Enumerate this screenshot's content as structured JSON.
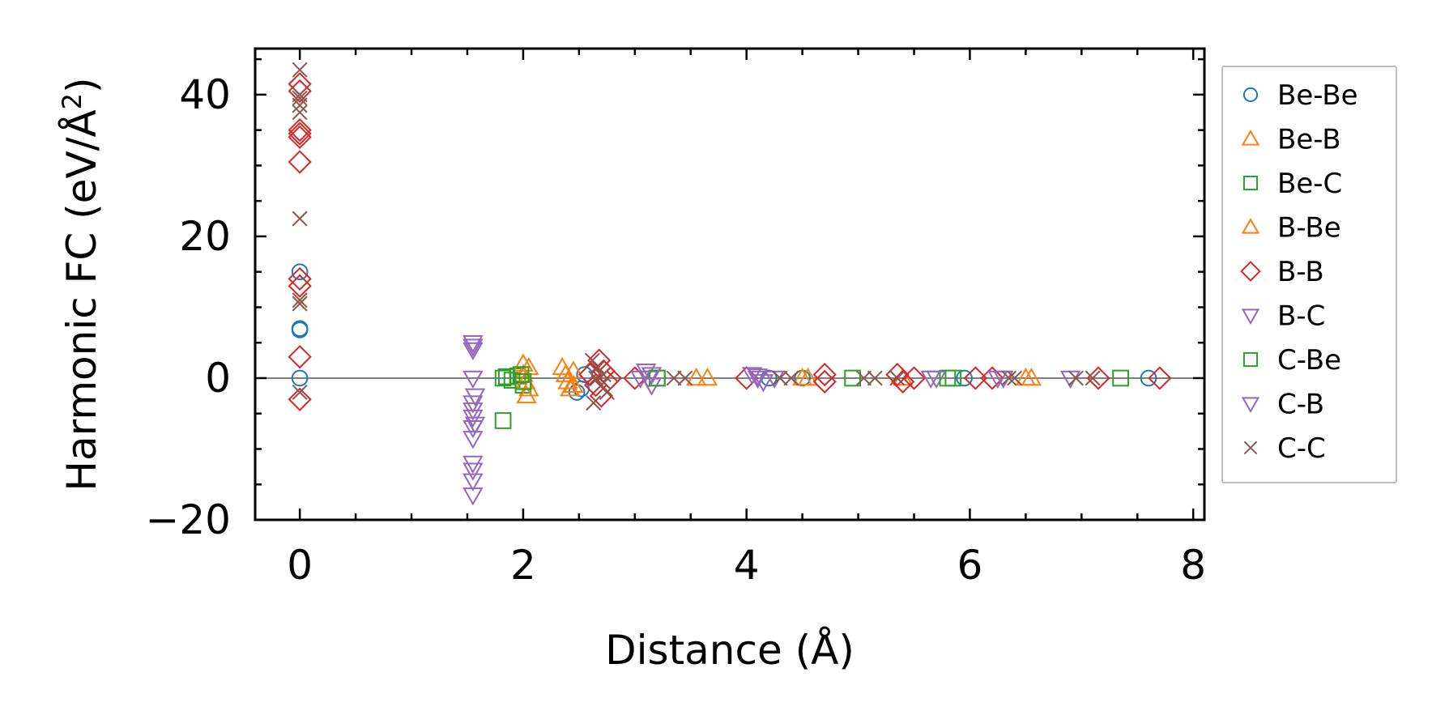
{
  "chart_data": {
    "type": "scatter",
    "xlabel": "Distance (Å)",
    "ylabel": "Harmonic FC (eV/Å²)",
    "ylabel_main": "Harmonic FC (eV/Å",
    "ylabel_sup": "2",
    "ylabel_end": ")",
    "xlim": [
      -0.4,
      8.1
    ],
    "ylim": [
      -20,
      46.5
    ],
    "x_ticks": [
      0,
      2,
      4,
      6,
      8
    ],
    "x_tick_labels": [
      "0",
      "2",
      "4",
      "6",
      "8"
    ],
    "y_ticks": [
      -20,
      0,
      20,
      40
    ],
    "y_tick_labels": [
      "−20",
      "0",
      "20",
      "40"
    ],
    "reference_line_y": 0,
    "grid": false,
    "legend_position": "outside-right",
    "series": [
      {
        "name": "Be-Be",
        "marker": "circle",
        "color": "#1f77b4",
        "points": [
          [
            0,
            15.0
          ],
          [
            0,
            7.0
          ],
          [
            0,
            6.8
          ],
          [
            0,
            0
          ],
          [
            2.48,
            -2.0
          ],
          [
            2.52,
            -1.5
          ],
          [
            2.55,
            0.5
          ],
          [
            4.2,
            0
          ],
          [
            4.5,
            0
          ],
          [
            5.95,
            0
          ],
          [
            7.6,
            0
          ]
        ]
      },
      {
        "name": "Be-B",
        "marker": "triangle-up",
        "color": "#ff7f0e",
        "points": [
          [
            2.05,
            1.5
          ],
          [
            2.05,
            -1.5
          ],
          [
            3.65,
            0
          ],
          [
            4.5,
            0
          ],
          [
            6.55,
            0
          ]
        ]
      },
      {
        "name": "Be-C",
        "marker": "square",
        "color": "#2ca02c",
        "points": [
          [
            1.82,
            -6.0
          ],
          [
            1.82,
            0
          ],
          [
            1.9,
            -0.3
          ],
          [
            1.95,
            0.3
          ],
          [
            2.0,
            -1.0
          ],
          [
            3.2,
            0
          ],
          [
            4.95,
            0
          ],
          [
            5.85,
            0
          ],
          [
            7.35,
            0
          ]
        ]
      },
      {
        "name": "B-Be",
        "marker": "triangle-up",
        "color": "#ff7f0e",
        "points": [
          [
            2.0,
            2.0
          ],
          [
            2.0,
            0.5
          ],
          [
            2.02,
            -0.5
          ],
          [
            2.03,
            -2.5
          ],
          [
            2.35,
            1.5
          ],
          [
            2.38,
            0.5
          ],
          [
            2.4,
            -0.5
          ],
          [
            2.42,
            -1.5
          ],
          [
            2.45,
            1.0
          ],
          [
            2.45,
            -1.0
          ],
          [
            3.55,
            0
          ],
          [
            4.55,
            0
          ],
          [
            5.4,
            0
          ],
          [
            6.5,
            0
          ]
        ]
      },
      {
        "name": "B-B",
        "marker": "diamond",
        "color": "#d62728",
        "points": [
          [
            0,
            41.5
          ],
          [
            0,
            40.5
          ],
          [
            0,
            35.0
          ],
          [
            0,
            34.5
          ],
          [
            0,
            34.0
          ],
          [
            0,
            30.5
          ],
          [
            0,
            14.0
          ],
          [
            0,
            13.0
          ],
          [
            0,
            3.0
          ],
          [
            0,
            -3.0
          ],
          [
            2.6,
            0.5
          ],
          [
            2.65,
            -1.0
          ],
          [
            2.68,
            2.5
          ],
          [
            2.7,
            -2.5
          ],
          [
            2.72,
            1.0
          ],
          [
            2.75,
            -0.5
          ],
          [
            2.78,
            0
          ],
          [
            3.0,
            0
          ],
          [
            4.0,
            0
          ],
          [
            4.7,
            0.5
          ],
          [
            4.7,
            -0.5
          ],
          [
            5.35,
            0.5
          ],
          [
            5.4,
            -0.5
          ],
          [
            5.5,
            0
          ],
          [
            6.05,
            0
          ],
          [
            6.2,
            0
          ],
          [
            7.15,
            0
          ],
          [
            7.7,
            0
          ]
        ]
      },
      {
        "name": "B-C",
        "marker": "triangle-down",
        "color": "#9467bd",
        "points": [
          [
            1.55,
            5.0
          ],
          [
            1.55,
            4.0
          ],
          [
            1.55,
            0
          ],
          [
            1.55,
            -3.5
          ],
          [
            1.55,
            -4.5
          ],
          [
            1.55,
            -5.5
          ],
          [
            1.55,
            -7.0
          ],
          [
            1.55,
            -8.5
          ],
          [
            1.55,
            -12.0
          ],
          [
            1.55,
            -13.0
          ],
          [
            1.55,
            -14.5
          ],
          [
            1.55,
            -16.5
          ],
          [
            3.1,
            1.0
          ],
          [
            3.12,
            0
          ],
          [
            3.15,
            -1.0
          ],
          [
            4.05,
            0.5
          ],
          [
            4.1,
            0
          ],
          [
            4.15,
            -0.5
          ],
          [
            4.25,
            0
          ],
          [
            5.7,
            0
          ],
          [
            6.3,
            0
          ],
          [
            6.9,
            0
          ]
        ]
      },
      {
        "name": "C-Be",
        "marker": "square",
        "color": "#2ca02c",
        "points": [
          [
            1.85,
            0.2
          ],
          [
            1.98,
            0.5
          ],
          [
            2.0,
            -0.5
          ],
          [
            3.2,
            0
          ],
          [
            5.8,
            0
          ]
        ]
      },
      {
        "name": "C-B",
        "marker": "triangle-down",
        "color": "#9467bd",
        "points": [
          [
            1.55,
            4.5
          ],
          [
            1.57,
            -2.5
          ],
          [
            1.57,
            -6.5
          ],
          [
            3.05,
            0
          ],
          [
            3.15,
            0.5
          ],
          [
            4.1,
            0.3
          ],
          [
            5.65,
            0
          ],
          [
            6.25,
            0
          ]
        ]
      },
      {
        "name": "C-C",
        "marker": "x",
        "color": "#8c564b",
        "points": [
          [
            0,
            43.5
          ],
          [
            0,
            40.0
          ],
          [
            0,
            39.5
          ],
          [
            0,
            38.5
          ],
          [
            0,
            37.5
          ],
          [
            0,
            22.5
          ],
          [
            0,
            11.0
          ],
          [
            0,
            10.5
          ],
          [
            0,
            -2.0
          ],
          [
            2.62,
            2.5
          ],
          [
            2.63,
            -3.5
          ],
          [
            2.65,
            0
          ],
          [
            2.67,
            1.5
          ],
          [
            2.7,
            -1.0
          ],
          [
            2.72,
            0.5
          ],
          [
            2.75,
            -2.0
          ],
          [
            3.35,
            0
          ],
          [
            3.45,
            0
          ],
          [
            4.3,
            0
          ],
          [
            4.4,
            0
          ],
          [
            5.05,
            0
          ],
          [
            5.15,
            0
          ],
          [
            5.35,
            0
          ],
          [
            6.35,
            0
          ],
          [
            6.4,
            0
          ],
          [
            6.95,
            0
          ],
          [
            7.1,
            0
          ]
        ]
      }
    ]
  }
}
